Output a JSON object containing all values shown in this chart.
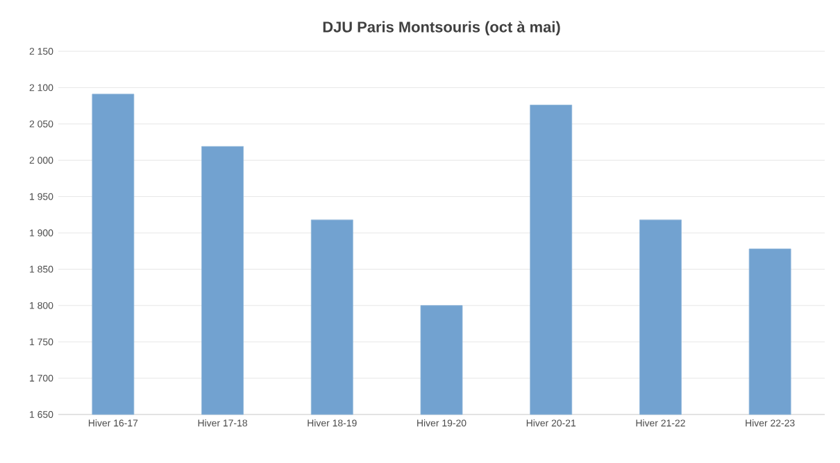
{
  "chart_data": {
    "type": "bar",
    "title": "DJU Paris Montsouris (oct à mai)",
    "categories": [
      "Hiver 16-17",
      "Hiver 17-18",
      "Hiver 18-19",
      "Hiver 19-20",
      "Hiver 20-21",
      "Hiver 21-22",
      "Hiver 22-23"
    ],
    "values": [
      2091,
      2019,
      1918,
      1800,
      2076,
      1918,
      1878
    ],
    "color": "#72a2d0",
    "ylim": [
      1650,
      2150
    ],
    "yticks": [
      {
        "value": 1650,
        "label": "1 650"
      },
      {
        "value": 1700,
        "label": "1 700"
      },
      {
        "value": 1750,
        "label": "1 750"
      },
      {
        "value": 1800,
        "label": "1 800"
      },
      {
        "value": 1850,
        "label": "1 850"
      },
      {
        "value": 1900,
        "label": "1 900"
      },
      {
        "value": 1950,
        "label": "1 950"
      },
      {
        "value": 2000,
        "label": "2 000"
      },
      {
        "value": 2050,
        "label": "2 050"
      },
      {
        "value": 2100,
        "label": "2 100"
      },
      {
        "value": 2150,
        "label": "2 150"
      }
    ],
    "grid": "y"
  }
}
